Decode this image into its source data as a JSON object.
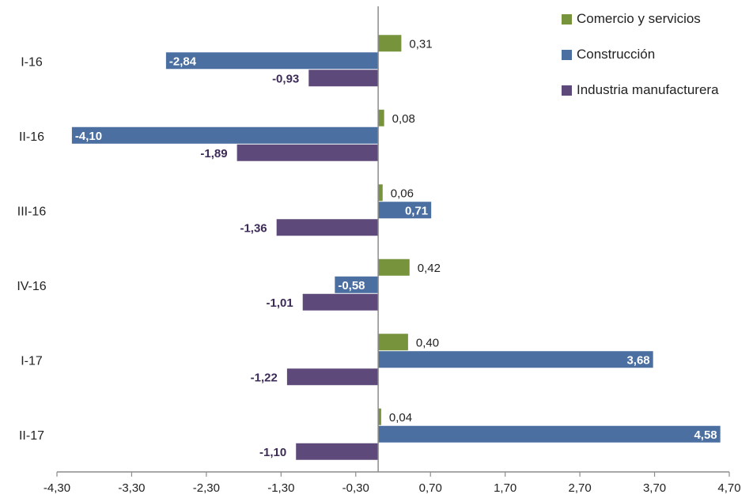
{
  "chart_data": {
    "type": "bar",
    "orientation": "horizontal",
    "categories": [
      "I-16",
      "II-16",
      "III-16",
      "IV-16",
      "I-17",
      "II-17"
    ],
    "series": [
      {
        "name": "Comercio y servicios",
        "color": "#77933c",
        "values": [
          0.31,
          0.08,
          0.06,
          0.42,
          0.4,
          0.04
        ],
        "labels": [
          "0,31",
          "0,08",
          "0,06",
          "0,42",
          "0,40",
          "0,04"
        ]
      },
      {
        "name": "Construcción",
        "color": "#4a6fa0",
        "values": [
          -2.84,
          -4.1,
          0.71,
          -0.58,
          3.68,
          4.58
        ],
        "labels": [
          "-2,84",
          "-4,10",
          "0,71",
          "-0,58",
          "3,68",
          "4,58"
        ]
      },
      {
        "name": "Industria manufacturera",
        "color": "#5e4a7a",
        "values": [
          -0.93,
          -1.89,
          -1.36,
          -1.01,
          -1.22,
          -1.1
        ],
        "labels": [
          "-0,93",
          "-1,89",
          "-1,36",
          "-1,01",
          "-1,22",
          "-1,10"
        ]
      }
    ],
    "x_ticks": [
      -4.3,
      -3.3,
      -2.3,
      -1.3,
      -0.3,
      0.7,
      1.7,
      2.7,
      3.7,
      4.7
    ],
    "x_tick_labels": [
      "-4,30",
      "-3,30",
      "-2,30",
      "-1,30",
      "-0,30",
      "0,70",
      "1,70",
      "2,70",
      "3,70",
      "4,70"
    ],
    "xlim": [
      -4.3,
      4.7
    ],
    "grid": false,
    "legend_position": "top-right"
  }
}
